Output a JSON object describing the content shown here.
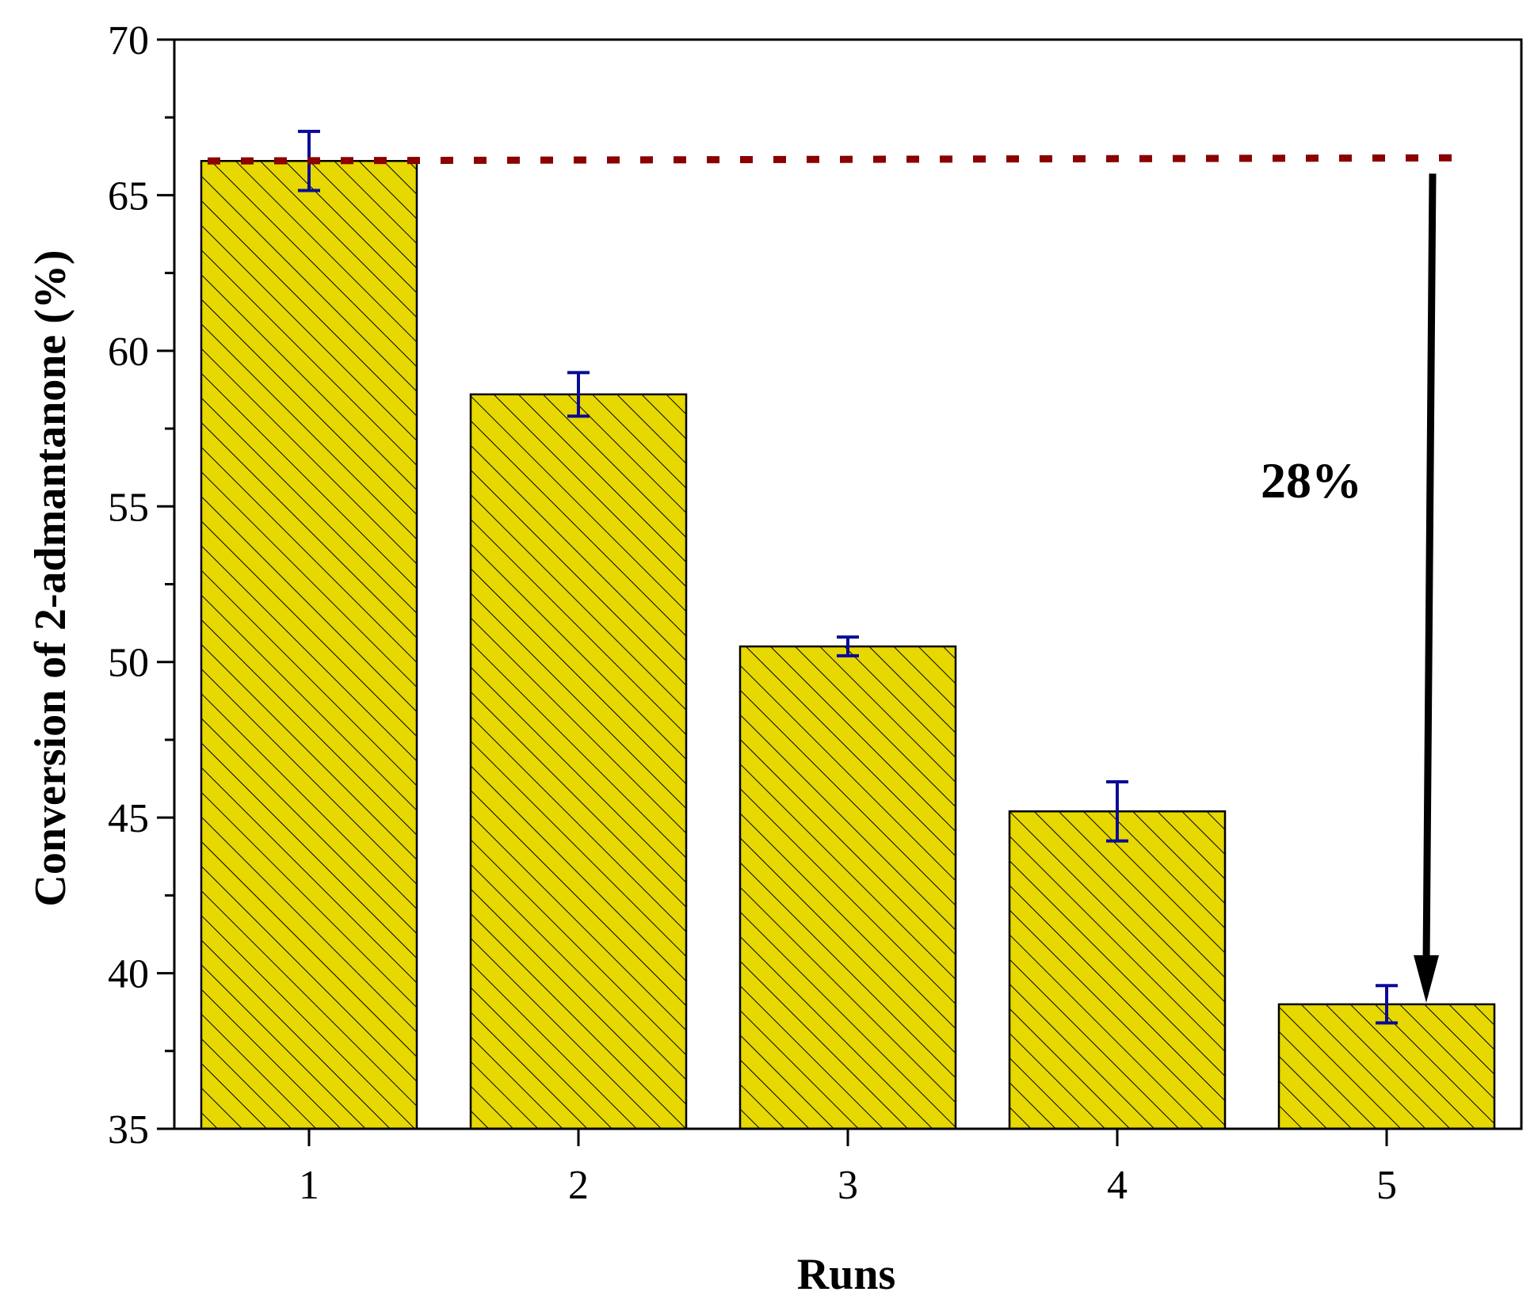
{
  "chart_data": {
    "type": "bar",
    "categories": [
      "1",
      "2",
      "3",
      "4",
      "5"
    ],
    "values": [
      66.1,
      58.6,
      50.5,
      45.2,
      39.0
    ],
    "error": [
      0.95,
      0.7,
      0.3,
      0.95,
      0.6
    ],
    "xlabel": "Runs",
    "ylabel": "Conversion of 2-admantanone (%)",
    "ylim": [
      35,
      70
    ],
    "yticks": [
      35,
      40,
      45,
      50,
      55,
      60,
      65,
      70
    ],
    "yminor_step": 2.5,
    "grid": false,
    "legend": "none",
    "reference_line": {
      "y": 66.1,
      "style": "dotted"
    },
    "annotation": {
      "text": "28%",
      "arrow_from": 66.1,
      "arrow_to": 39.0
    },
    "colors": {
      "bar_fill": "#e6d800",
      "bar_hatch": "#000000",
      "error_bar": "#0a0a96",
      "reference_line": "#8b0000",
      "arrow": "#000000",
      "axis": "#000000"
    },
    "bar_pattern": "diagonal-hatch"
  }
}
